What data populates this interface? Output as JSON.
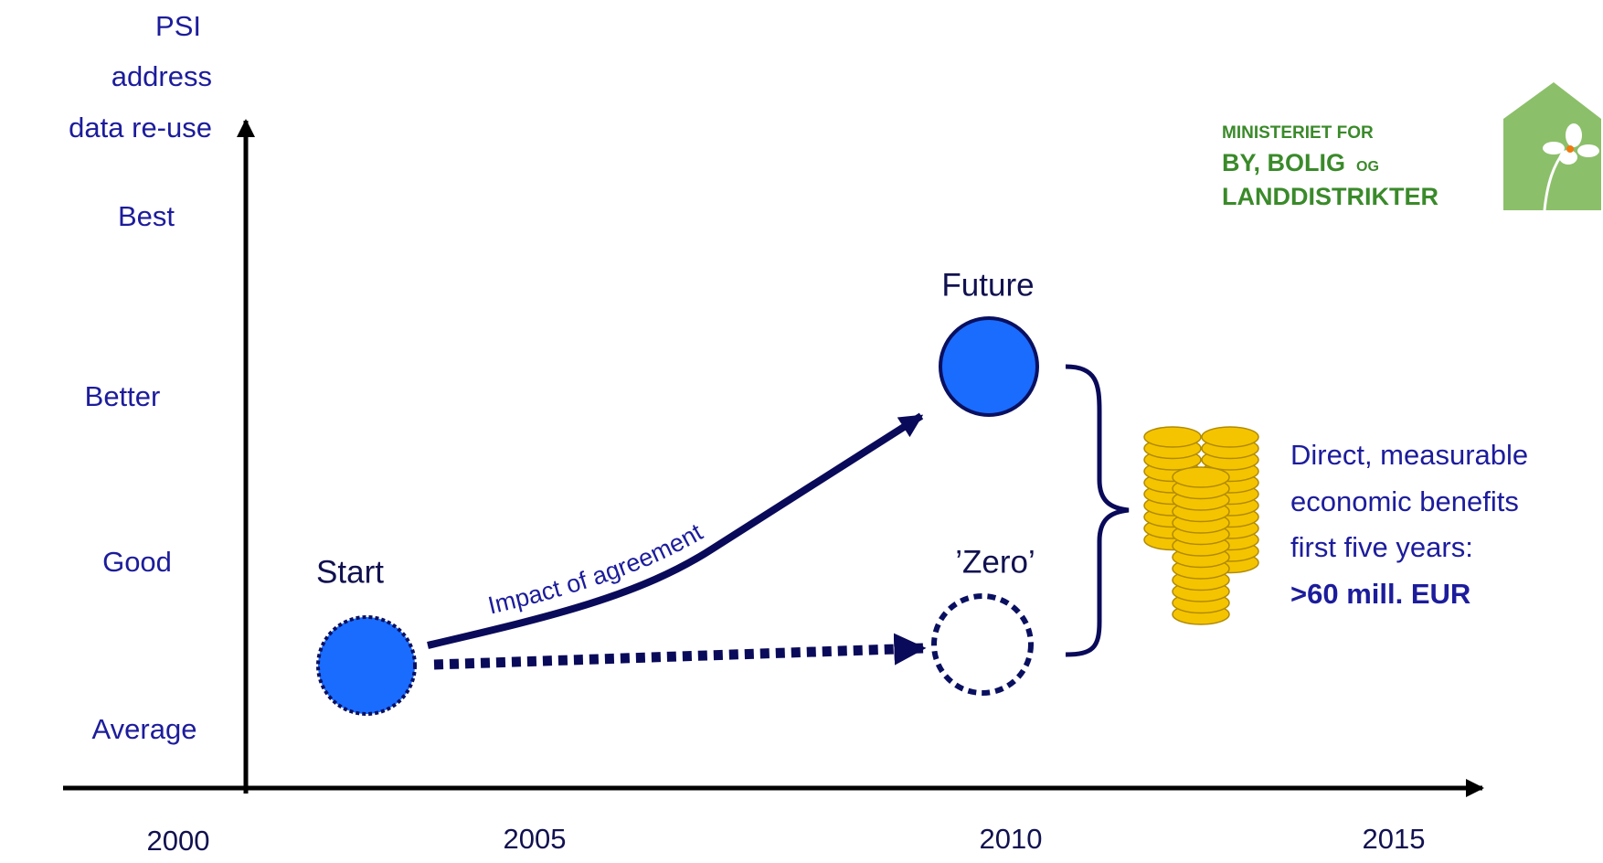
{
  "y_axis": {
    "title_lines": [
      "PSI",
      "address",
      "data re-use"
    ],
    "levels": [
      "Best",
      "Better",
      "Good",
      "Average"
    ]
  },
  "x_axis": {
    "years": [
      "2000",
      "2005",
      "2010",
      "2015"
    ]
  },
  "nodes": [
    {
      "label": "Start"
    },
    {
      "label": "Future"
    },
    {
      "label": "’Zero’"
    }
  ],
  "arrow_label": "Impact of agreement",
  "benefits": {
    "lines": [
      "Direct, measurable",
      "economic benefits",
      "first five years:"
    ],
    "highlight": ">60 mill. EUR"
  },
  "logo": {
    "line1": "MINISTERIET FOR",
    "line2": "BY, BOLIG",
    "line2_small": "OG",
    "line3": "LANDDISTRIKTER"
  }
}
